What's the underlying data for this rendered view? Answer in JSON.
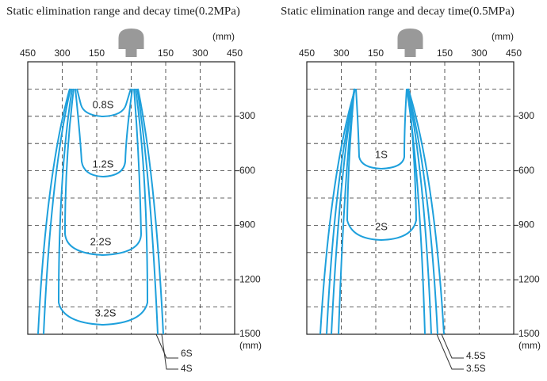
{
  "panels": [
    {
      "title": "Static elimination range and decay time(0.2MPa)",
      "unit_top": "(mm)",
      "unit_bottom": "(mm)",
      "top_ticks": [
        "450",
        "300",
        "150",
        "150",
        "300",
        "450"
      ],
      "right_ticks": [
        "300",
        "600",
        "900",
        "1200",
        "1500"
      ],
      "contour_labels": [
        "0.8S",
        "1.2S",
        "2.2S",
        "3.2S"
      ],
      "open_labels": [
        "6S",
        "4S"
      ]
    },
    {
      "title": "Static elimination range and decay time(0.5MPa)",
      "unit_top": "(mm)",
      "unit_bottom": "(mm)",
      "top_ticks": [
        "450",
        "300",
        "150",
        "150",
        "300",
        "450"
      ],
      "right_ticks": [
        "300",
        "600",
        "900",
        "1200",
        "1500"
      ],
      "contour_labels": [
        "1S",
        "2S"
      ],
      "open_labels": [
        "4.5S",
        "3.5S"
      ]
    }
  ]
}
